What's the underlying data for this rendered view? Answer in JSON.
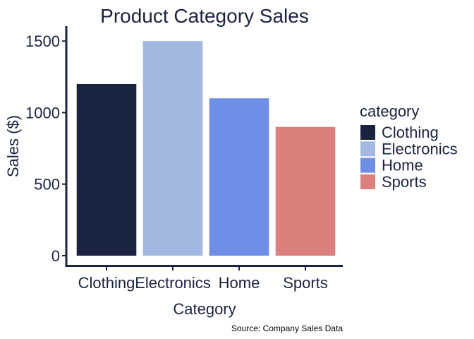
{
  "chart_data": {
    "type": "bar",
    "title": "Product Category Sales",
    "xlabel": "Category",
    "ylabel": "Sales ($)",
    "categories": [
      "Clothing",
      "Electronics",
      "Home",
      "Sports"
    ],
    "values": [
      1200,
      1500,
      1100,
      900
    ],
    "colors": [
      "#1a2340",
      "#a2b8e0",
      "#6f8fe6",
      "#db807d"
    ],
    "ylim": [
      0,
      1575
    ],
    "yticks": [
      0,
      500,
      1000,
      1500
    ],
    "grid": false,
    "legend": {
      "title": "category",
      "placement": "right",
      "entries": [
        "Clothing",
        "Electronics",
        "Home",
        "Sports"
      ]
    },
    "caption": "Source: Company Sales Data"
  }
}
